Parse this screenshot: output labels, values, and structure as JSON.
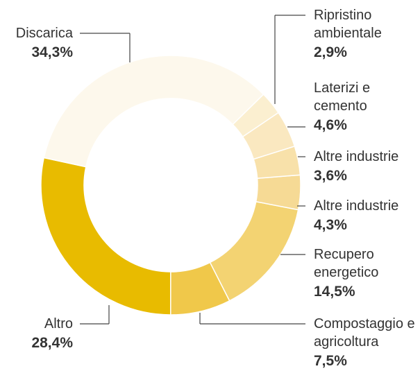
{
  "chart_data": {
    "type": "donut",
    "categories": [
      "Discarica",
      "Ripristino ambientale",
      "Laterizi e cemento",
      "Altre industrie",
      "Altre industrie",
      "Recupero energetico",
      "Compostaggio e agricoltura",
      "Altro"
    ],
    "values": [
      34.3,
      2.9,
      4.6,
      3.6,
      4.3,
      14.5,
      7.5,
      28.4
    ],
    "value_labels": [
      "34,3%",
      "2,9%",
      "4,6%",
      "3,6%",
      "4,3%",
      "14,5%",
      "7,5%",
      "28,4%"
    ],
    "colors": [
      "#fdf8ec",
      "#fbefd0",
      "#fae8c0",
      "#f8e1aa",
      "#f6da95",
      "#f3d372",
      "#f0c84a",
      "#e8bb00"
    ]
  }
}
